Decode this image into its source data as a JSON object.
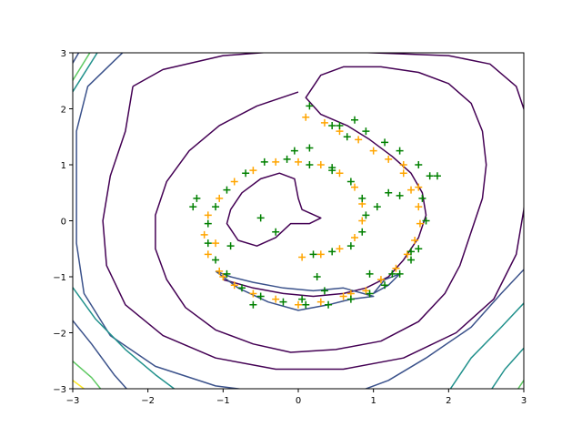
{
  "chart_data": {
    "type": "scatter",
    "title": "",
    "xlabel": "",
    "ylabel": "",
    "xlim": [
      -3,
      3
    ],
    "ylim": [
      -3,
      3
    ],
    "x_ticks": [
      -3,
      -2,
      -1,
      0,
      1,
      2,
      3
    ],
    "y_ticks": [
      -3,
      -2,
      -1,
      0,
      1,
      2,
      3
    ],
    "x_tick_labels": [
      "−3",
      "−2",
      "−1",
      "0",
      "1",
      "2",
      "3"
    ],
    "y_tick_labels": [
      "−3",
      "−2",
      "−1",
      "0",
      "1",
      "2",
      "3"
    ],
    "grid": false,
    "legend": "none",
    "marker": "+",
    "contour_colors": [
      "#440154",
      "#3b528b",
      "#21918c",
      "#5ec962",
      "#fde725"
    ],
    "contours": [
      {
        "level": 1,
        "color": "#440154",
        "path": [
          [
            -1.0,
            -1.05
          ],
          [
            -0.6,
            -1.2
          ],
          [
            -0.2,
            -1.3
          ],
          [
            0.2,
            -1.35
          ],
          [
            0.6,
            -1.3
          ],
          [
            0.9,
            -1.2
          ],
          [
            1.2,
            -1.0
          ],
          [
            1.4,
            -0.7
          ],
          [
            1.6,
            -0.3
          ],
          [
            1.7,
            0.1
          ],
          [
            1.65,
            0.5
          ],
          [
            1.5,
            0.85
          ],
          [
            1.25,
            1.15
          ],
          [
            0.95,
            1.45
          ],
          [
            0.65,
            1.7
          ],
          [
            0.3,
            1.9
          ],
          [
            0.1,
            2.2
          ],
          [
            0.3,
            2.6
          ],
          [
            0.6,
            2.75
          ],
          [
            1.1,
            2.75
          ],
          [
            1.6,
            2.65
          ],
          [
            2.0,
            2.45
          ],
          [
            2.3,
            2.1
          ],
          [
            2.45,
            1.6
          ],
          [
            2.5,
            1.0
          ],
          [
            2.45,
            0.4
          ],
          [
            2.3,
            -0.2
          ],
          [
            2.15,
            -0.8
          ],
          [
            1.95,
            -1.3
          ],
          [
            1.6,
            -1.8
          ],
          [
            1.1,
            -2.15
          ],
          [
            0.5,
            -2.3
          ],
          [
            -0.1,
            -2.35
          ],
          [
            -0.6,
            -2.2
          ],
          [
            -1.1,
            -1.95
          ],
          [
            -1.5,
            -1.55
          ],
          [
            -1.75,
            -1.05
          ],
          [
            -1.9,
            -0.5
          ],
          [
            -1.9,
            0.1
          ],
          [
            -1.75,
            0.7
          ],
          [
            -1.45,
            1.25
          ],
          [
            -1.05,
            1.7
          ],
          [
            -0.55,
            2.05
          ],
          [
            0.0,
            2.3
          ]
        ]
      },
      {
        "level": 1,
        "color": "#440154",
        "path": [
          [
            -0.9,
            0.2
          ],
          [
            -0.75,
            0.5
          ],
          [
            -0.5,
            0.75
          ],
          [
            -0.25,
            0.85
          ],
          [
            -0.05,
            0.75
          ],
          [
            0.0,
            0.4
          ],
          [
            0.05,
            0.2
          ],
          [
            0.3,
            0.05
          ],
          [
            0.15,
            -0.05
          ],
          [
            -0.1,
            -0.05
          ],
          [
            -0.3,
            -0.3
          ],
          [
            -0.55,
            -0.45
          ],
          [
            -0.8,
            -0.35
          ],
          [
            -0.95,
            -0.05
          ],
          [
            -0.9,
            0.2
          ]
        ]
      },
      {
        "level": 1,
        "color": "#440154",
        "path": [
          [
            -2.2,
            2.4
          ],
          [
            -1.8,
            2.7
          ],
          [
            -1.0,
            2.95
          ],
          [
            0.0,
            3.05
          ],
          [
            1.0,
            3.0
          ],
          [
            2.0,
            2.95
          ],
          [
            2.55,
            2.8
          ],
          [
            2.9,
            2.4
          ],
          [
            3.05,
            1.8
          ],
          [
            3.05,
            1.0
          ],
          [
            3.0,
            0.2
          ],
          [
            2.9,
            -0.6
          ],
          [
            2.6,
            -1.4
          ],
          [
            2.1,
            -2.0
          ],
          [
            1.4,
            -2.45
          ],
          [
            0.6,
            -2.65
          ],
          [
            -0.3,
            -2.65
          ],
          [
            -1.1,
            -2.45
          ],
          [
            -1.8,
            -2.05
          ],
          [
            -2.3,
            -1.5
          ],
          [
            -2.55,
            -0.8
          ],
          [
            -2.6,
            0.0
          ],
          [
            -2.5,
            0.8
          ],
          [
            -2.3,
            1.6
          ],
          [
            -2.2,
            2.4
          ]
        ]
      },
      {
        "level": 2,
        "color": "#3b528b",
        "path": [
          [
            -1.1,
            -0.9
          ],
          [
            -0.8,
            -1.2
          ],
          [
            -0.4,
            -1.45
          ],
          [
            0.0,
            -1.6
          ],
          [
            0.4,
            -1.5
          ],
          [
            0.7,
            -1.4
          ],
          [
            1.0,
            -1.35
          ],
          [
            0.6,
            -1.2
          ],
          [
            0.2,
            -1.25
          ],
          [
            -0.2,
            -1.2
          ],
          [
            -0.6,
            -1.1
          ],
          [
            -0.9,
            -1.0
          ],
          [
            -1.1,
            -0.9
          ]
        ]
      },
      {
        "level": 2,
        "color": "#3b528b",
        "path": [
          [
            1.35,
            -0.95
          ],
          [
            1.2,
            -1.15
          ],
          [
            1.0,
            -1.3
          ],
          [
            1.15,
            -1.05
          ],
          [
            1.35,
            -0.95
          ]
        ]
      },
      {
        "level": 2,
        "color": "#3b528b",
        "path": [
          [
            -2.3,
            3.05
          ],
          [
            -2.8,
            2.4
          ],
          [
            -2.95,
            1.6
          ],
          [
            -2.95,
            0.6
          ],
          [
            -2.95,
            -0.4
          ],
          [
            -2.85,
            -1.3
          ],
          [
            -2.5,
            -2.05
          ],
          [
            -1.9,
            -2.6
          ],
          [
            -1.1,
            -2.95
          ],
          [
            -0.5,
            -3.05
          ]
        ]
      },
      {
        "level": 2,
        "color": "#3b528b",
        "path": [
          [
            3.05,
            -0.8
          ],
          [
            2.7,
            -1.3
          ],
          [
            2.3,
            -1.9
          ],
          [
            1.7,
            -2.45
          ],
          [
            1.2,
            -2.85
          ],
          [
            0.8,
            -3.05
          ]
        ]
      },
      {
        "level": 3,
        "color": "#21918c",
        "path": [
          [
            -2.65,
            3.05
          ],
          [
            -3.05,
            2.2
          ]
        ]
      },
      {
        "level": 3,
        "color": "#21918c",
        "path": [
          [
            -3.05,
            -1.1
          ],
          [
            -2.7,
            -1.75
          ],
          [
            -2.3,
            -2.3
          ],
          [
            -1.9,
            -2.75
          ],
          [
            -1.6,
            -3.05
          ]
        ]
      },
      {
        "level": 3,
        "color": "#21918c",
        "path": [
          [
            3.05,
            -1.4
          ],
          [
            2.7,
            -1.9
          ],
          [
            2.3,
            -2.45
          ],
          [
            2.0,
            -3.05
          ]
        ]
      },
      {
        "level": 4,
        "color": "#3b528b",
        "path": [
          [
            -2.9,
            3.05
          ],
          [
            -3.05,
            2.7
          ]
        ]
      },
      {
        "level": 4,
        "color": "#3b528b",
        "path": [
          [
            -3.05,
            -1.7
          ],
          [
            -2.75,
            -2.2
          ],
          [
            -2.45,
            -2.75
          ],
          [
            -2.25,
            -3.05
          ]
        ]
      },
      {
        "level": 4,
        "color": "#21918c",
        "path": [
          [
            3.05,
            -2.2
          ],
          [
            2.75,
            -2.65
          ],
          [
            2.55,
            -3.05
          ]
        ]
      },
      {
        "level": 5,
        "color": "#5ec962",
        "path": [
          [
            -2.75,
            3.05
          ],
          [
            -3.05,
            2.4
          ]
        ]
      },
      {
        "level": 5,
        "color": "#5ec962",
        "path": [
          [
            -3.05,
            -2.45
          ],
          [
            -2.75,
            -2.8
          ],
          [
            -2.6,
            -3.05
          ]
        ]
      },
      {
        "level": 5,
        "color": "#5ec962",
        "path": [
          [
            3.05,
            -2.75
          ],
          [
            2.9,
            -3.05
          ]
        ]
      },
      {
        "level": 6,
        "color": "#fde725",
        "path": [
          [
            -3.05,
            -2.8
          ],
          [
            -2.8,
            -3.05
          ]
        ]
      }
    ],
    "series": [
      {
        "color": "#ffa500",
        "points": [
          [
            0.1,
            1.85
          ],
          [
            0.35,
            1.75
          ],
          [
            0.55,
            1.6
          ],
          [
            0.8,
            1.45
          ],
          [
            1.0,
            1.25
          ],
          [
            1.2,
            1.1
          ],
          [
            1.4,
            0.85
          ],
          [
            1.5,
            0.55
          ],
          [
            1.6,
            0.25
          ],
          [
            1.62,
            -0.05
          ],
          [
            1.55,
            -0.35
          ],
          [
            1.45,
            -0.6
          ],
          [
            1.3,
            -0.85
          ],
          [
            1.1,
            -1.05
          ],
          [
            0.9,
            -1.25
          ],
          [
            0.6,
            -1.35
          ],
          [
            0.3,
            -1.45
          ],
          [
            0.0,
            -1.5
          ],
          [
            -0.3,
            -1.4
          ],
          [
            -0.6,
            -1.3
          ],
          [
            -0.85,
            -1.15
          ],
          [
            -1.05,
            -0.9
          ],
          [
            -1.2,
            -0.6
          ],
          [
            -1.25,
            -0.25
          ],
          [
            -1.2,
            0.1
          ],
          [
            -1.05,
            0.4
          ],
          [
            -0.85,
            0.7
          ],
          [
            -0.6,
            0.9
          ],
          [
            -0.3,
            1.05
          ],
          [
            0.0,
            1.05
          ],
          [
            0.3,
            1.0
          ],
          [
            0.55,
            0.85
          ],
          [
            0.75,
            0.6
          ],
          [
            0.85,
            0.3
          ],
          [
            0.85,
            0.0
          ],
          [
            0.75,
            -0.3
          ],
          [
            0.55,
            -0.5
          ],
          [
            0.3,
            -0.6
          ],
          [
            0.05,
            -0.65
          ],
          [
            1.4,
            1.0
          ],
          [
            1.6,
            0.6
          ],
          [
            -1.1,
            -0.4
          ],
          [
            -1.0,
            -1.0
          ],
          [
            0.7,
            -1.3
          ]
        ]
      },
      {
        "color": "#008000",
        "points": [
          [
            0.15,
            2.05
          ],
          [
            0.45,
            1.7
          ],
          [
            0.75,
            1.8
          ],
          [
            0.9,
            1.6
          ],
          [
            1.15,
            1.4
          ],
          [
            1.35,
            1.25
          ],
          [
            1.6,
            1.0
          ],
          [
            1.75,
            0.8
          ],
          [
            1.65,
            0.4
          ],
          [
            1.7,
            0.0
          ],
          [
            1.6,
            -0.5
          ],
          [
            1.5,
            -0.7
          ],
          [
            1.35,
            -0.95
          ],
          [
            1.15,
            -1.15
          ],
          [
            0.95,
            -1.3
          ],
          [
            0.7,
            -1.4
          ],
          [
            0.4,
            -1.5
          ],
          [
            0.1,
            -1.5
          ],
          [
            -0.2,
            -1.45
          ],
          [
            -0.5,
            -1.35
          ],
          [
            -0.75,
            -1.2
          ],
          [
            -0.95,
            -0.95
          ],
          [
            -1.1,
            -0.7
          ],
          [
            -1.2,
            -0.4
          ],
          [
            -1.2,
            -0.05
          ],
          [
            -1.1,
            0.25
          ],
          [
            -0.95,
            0.55
          ],
          [
            -0.7,
            0.85
          ],
          [
            -0.45,
            1.05
          ],
          [
            -0.15,
            1.1
          ],
          [
            0.15,
            1.0
          ],
          [
            0.45,
            0.9
          ],
          [
            0.7,
            0.7
          ],
          [
            0.85,
            0.4
          ],
          [
            0.9,
            0.1
          ],
          [
            0.85,
            -0.2
          ],
          [
            0.7,
            -0.45
          ],
          [
            0.45,
            -0.55
          ],
          [
            0.2,
            -0.6
          ],
          [
            -0.5,
            0.05
          ],
          [
            -0.3,
            -0.2
          ],
          [
            0.25,
            -1.0
          ],
          [
            0.95,
            -0.95
          ],
          [
            1.2,
            0.5
          ],
          [
            1.05,
            0.25
          ],
          [
            1.35,
            0.45
          ],
          [
            1.85,
            0.8
          ],
          [
            0.15,
            1.3
          ],
          [
            -0.05,
            1.25
          ],
          [
            -1.4,
            0.25
          ],
          [
            -1.35,
            0.4
          ],
          [
            -0.9,
            -0.45
          ],
          [
            0.55,
            1.7
          ],
          [
            0.65,
            1.5
          ],
          [
            0.45,
            0.95
          ],
          [
            1.5,
            -0.55
          ],
          [
            1.25,
            -0.95
          ],
          [
            -0.6,
            -1.5
          ],
          [
            0.35,
            -1.25
          ],
          [
            0.05,
            -1.4
          ]
        ]
      }
    ]
  }
}
